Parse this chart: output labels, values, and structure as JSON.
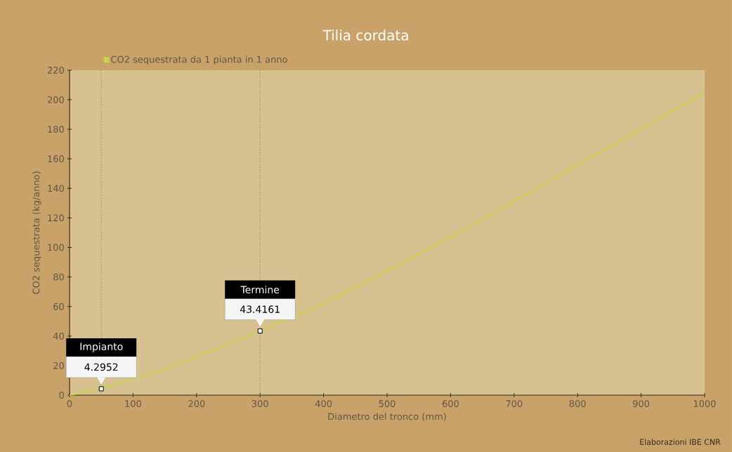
{
  "chart_data": {
    "type": "line",
    "title": "Tilia cordata",
    "xlabel": "Diametro del tronco (mm)",
    "ylabel": "CO2 sequestrata (kg/anno)",
    "series": [
      {
        "name": "CO2 sequestrata da 1 pianta in 1 anno",
        "color": "#c8d44a",
        "x": [
          0,
          50,
          100,
          150,
          200,
          250,
          300,
          400,
          500,
          600,
          700,
          800,
          900,
          1000
        ],
        "values": [
          0,
          4.3,
          11,
          17.5,
          26,
          34.5,
          43.4,
          62,
          84,
          107,
          131,
          156,
          180,
          205
        ]
      },
      {
        "type": "scatter",
        "color": "#ffffff",
        "marker": "square",
        "x": [
          50,
          300
        ],
        "values": [
          4.2952,
          43.4161
        ],
        "value_labels": [
          "4.2952",
          "43.4161"
        ]
      }
    ],
    "xlim": [
      0,
      1000
    ],
    "ylim": [
      0,
      220
    ],
    "xticks": [
      0,
      100,
      200,
      300,
      400,
      500,
      600,
      700,
      800,
      900,
      1000
    ],
    "yticks": [
      0,
      20,
      40,
      60,
      80,
      100,
      120,
      140,
      160,
      180,
      200,
      220
    ],
    "ref_lines": [
      {
        "axis": "x",
        "value": 50,
        "label": "Impianto",
        "line_style": "dotted",
        "color": "#8a7a66"
      },
      {
        "axis": "x",
        "value": 300,
        "label": "Termine",
        "line_style": "dotted",
        "color": "#8a7a66"
      }
    ],
    "annotations": [
      "Elaborazioni IBE CNR"
    ],
    "legend": "top left",
    "grid": false,
    "marker": "none",
    "line_style": "solid"
  }
}
